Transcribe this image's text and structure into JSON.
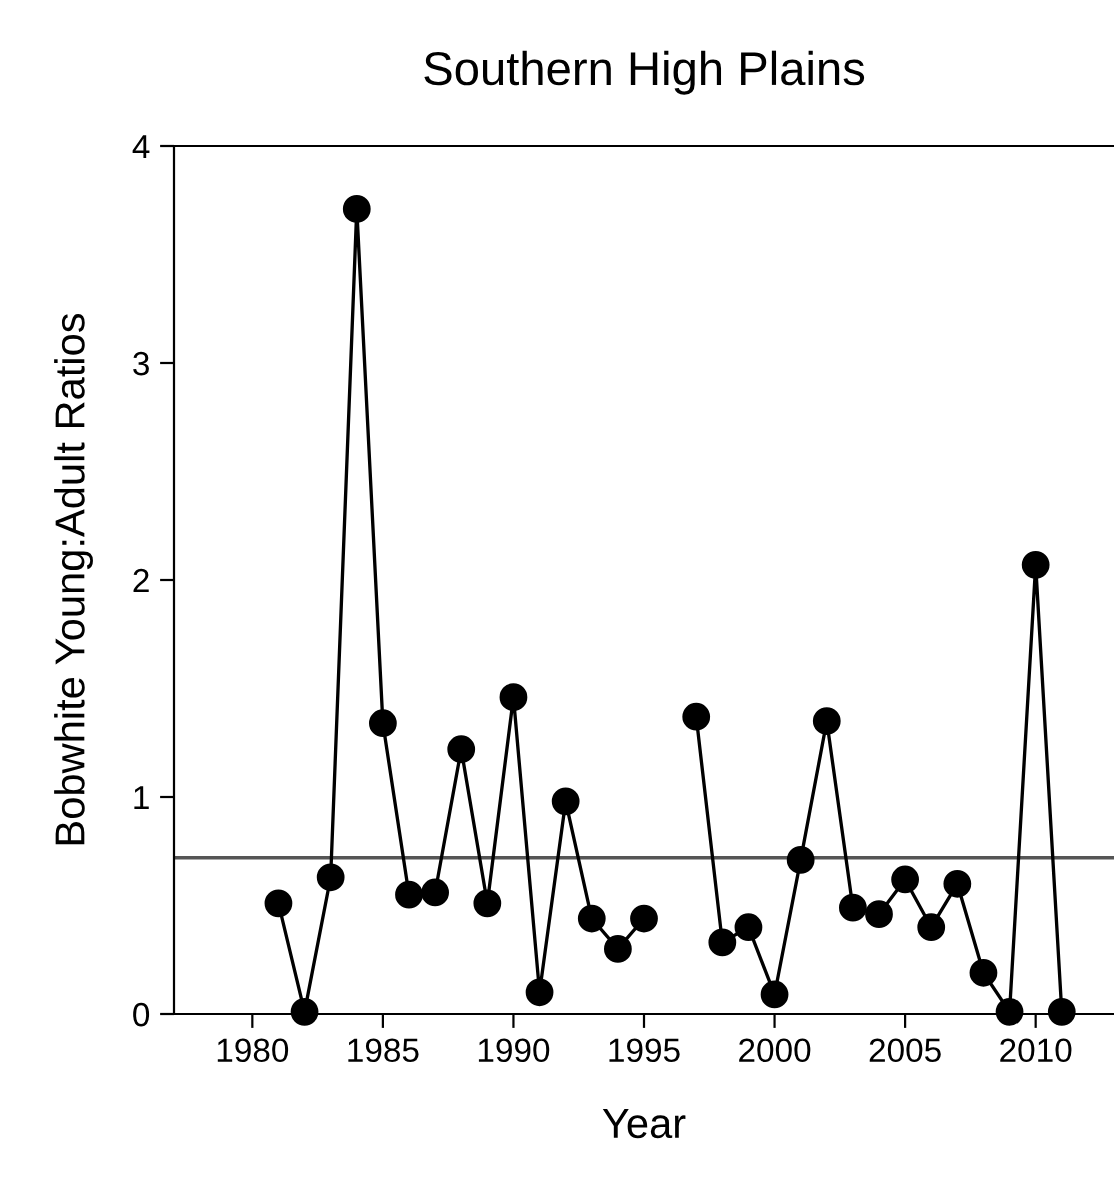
{
  "chart_data": {
    "type": "line",
    "title": "Southern High Plains",
    "xlabel": "Year",
    "ylabel": "Bobwhite Young:Adult Ratios",
    "x": [
      1981,
      1982,
      1983,
      1984,
      1985,
      1986,
      1987,
      1988,
      1989,
      1990,
      1991,
      1992,
      1993,
      1994,
      1995,
      1996,
      1997,
      1998,
      1999,
      2000,
      2001,
      2002,
      2003,
      2004,
      2005,
      2006,
      2007,
      2008,
      2009,
      2010,
      2011
    ],
    "series": [
      {
        "color": "#000000",
        "values": [
          0.51,
          0.01,
          0.63,
          3.71,
          1.34,
          0.55,
          0.56,
          1.22,
          0.51,
          1.46,
          0.1,
          0.98,
          0.44,
          0.3,
          0.44,
          null,
          1.37,
          0.33,
          0.4,
          0.09,
          0.71,
          1.35,
          0.49,
          0.46,
          0.62,
          0.4,
          0.6,
          0.19,
          0.01,
          2.07,
          0.01
        ]
      }
    ],
    "xlim": [
      1977,
      2013
    ],
    "xticks": [
      1980,
      1985,
      1990,
      1995,
      2000,
      2005,
      2010
    ],
    "ylim": [
      0,
      4
    ],
    "yticks": [
      0,
      1,
      2,
      3,
      4
    ],
    "ref_lines": [
      {
        "axis": "y",
        "value": 0.72,
        "color": "#555555"
      }
    ],
    "marker": "circle",
    "line_style": "solid",
    "grid": false,
    "legend": false
  }
}
